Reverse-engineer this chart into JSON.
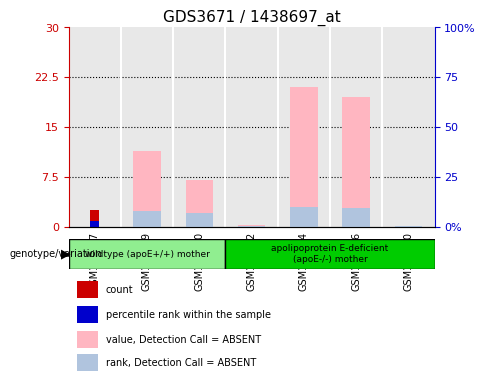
{
  "title": "GDS3671 / 1438697_at",
  "samples": [
    "GSM142367",
    "GSM142369",
    "GSM142370",
    "GSM142372",
    "GSM142374",
    "GSM142376",
    "GSM142380"
  ],
  "left_ylim": [
    0,
    30
  ],
  "right_ylim": [
    0,
    100
  ],
  "left_yticks": [
    0,
    7.5,
    15,
    22.5,
    30
  ],
  "right_yticks": [
    0,
    25,
    50,
    75,
    100
  ],
  "left_yticklabels": [
    "0",
    "7.5",
    "15",
    "22.5",
    "30"
  ],
  "right_yticklabels": [
    "0%",
    "25",
    "50",
    "75",
    "100%"
  ],
  "pink_bars": [
    0.0,
    11.5,
    7.0,
    0.3,
    21.0,
    19.5,
    0.0
  ],
  "light_blue_bars": [
    0.0,
    8.0,
    7.0,
    0.5,
    10.0,
    9.5,
    0.3
  ],
  "red_bars": [
    2.5,
    0.0,
    0.0,
    0.0,
    0.0,
    0.0,
    0.0
  ],
  "blue_bars": [
    3.0,
    0.0,
    0.0,
    0.0,
    0.0,
    0.0,
    0.0
  ],
  "groups": [
    {
      "label": "wildtype (apoE+/+) mother",
      "start": 0,
      "end": 3,
      "color": "#90ee90"
    },
    {
      "label": "apolipoprotein E-deficient\n(apoE-/-) mother",
      "start": 3,
      "end": 7,
      "color": "#00cc00"
    }
  ],
  "group_row_label": "genotype/variation",
  "legend_items": [
    {
      "color": "#cc0000",
      "label": "count"
    },
    {
      "color": "#0000cc",
      "label": "percentile rank within the sample"
    },
    {
      "color": "#ffb6c1",
      "label": "value, Detection Call = ABSENT"
    },
    {
      "color": "#b0c4de",
      "label": "rank, Detection Call = ABSENT"
    }
  ],
  "bar_color_pink": "#FFB6C1",
  "bar_color_lightblue": "#B0C4DE",
  "bar_color_red": "#CC0000",
  "bar_color_blue": "#0000CC",
  "bg_color": "#d3d3d3",
  "left_axis_color": "#cc0000",
  "right_axis_color": "#0000cc",
  "bar_width": 0.35
}
